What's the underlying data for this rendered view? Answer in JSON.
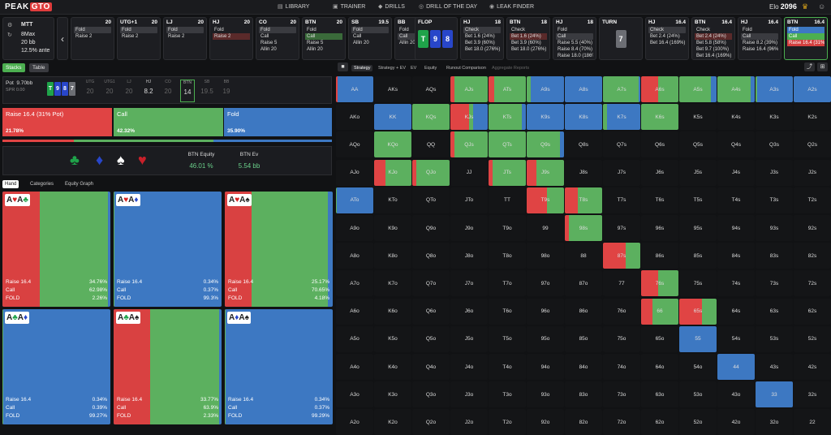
{
  "nav": {
    "logo_a": "PEAK",
    "logo_b": "GTO",
    "items": [
      "LIBRARY",
      "TRAINER",
      "DRILLS",
      "DRILL OF THE DAY",
      "LEAK FINDER"
    ],
    "elo_label": "Elo",
    "elo_value": "2096"
  },
  "info": {
    "format": "MTT",
    "players": "8Max",
    "stack": "20 bb",
    "ante": "12.5% ante"
  },
  "positions": [
    {
      "name": "",
      "stack": "20",
      "rows": [
        {
          "t": "Fold",
          "s": "sel"
        },
        {
          "t": "Raise 2",
          "s": ""
        }
      ]
    },
    {
      "name": "UTG+1",
      "stack": "20",
      "rows": [
        {
          "t": "Fold",
          "s": "sel"
        },
        {
          "t": "Raise 2",
          "s": ""
        }
      ]
    },
    {
      "name": "LJ",
      "stack": "20",
      "rows": [
        {
          "t": "Fold",
          "s": "sel"
        },
        {
          "t": "Raise 2",
          "s": ""
        }
      ]
    },
    {
      "name": "HJ",
      "stack": "20",
      "rows": [
        {
          "t": "Fold",
          "s": ""
        },
        {
          "t": "Raise 2",
          "s": "selr"
        }
      ]
    },
    {
      "name": "CO",
      "stack": "20",
      "rows": [
        {
          "t": "Fold",
          "s": "sel"
        },
        {
          "t": "Call",
          "s": ""
        },
        {
          "t": "Raise 5",
          "s": ""
        },
        {
          "t": "Allin 20",
          "s": ""
        }
      ]
    },
    {
      "name": "BTN",
      "stack": "20",
      "rows": [
        {
          "t": "Fold",
          "s": ""
        },
        {
          "t": "Call",
          "s": "selg"
        },
        {
          "t": "Raise 5",
          "s": ""
        },
        {
          "t": "Allin 20",
          "s": ""
        }
      ]
    },
    {
      "name": "SB",
      "stack": "19.5",
      "rows": [
        {
          "t": "Fold",
          "s": "sel"
        },
        {
          "t": "Call",
          "s": ""
        },
        {
          "t": "Allin 20",
          "s": ""
        }
      ]
    },
    {
      "name": "BB",
      "stack": "19",
      "rows": [
        {
          "t": "Fold",
          "s": ""
        },
        {
          "t": "Call",
          "s": "sel"
        },
        {
          "t": "Allin 20",
          "s": ""
        }
      ]
    }
  ],
  "flop": {
    "label": "FLOP",
    "cards": [
      {
        "r": "T",
        "c": "green"
      },
      {
        "r": "9",
        "c": "blue"
      },
      {
        "r": "8",
        "c": "blue"
      }
    ]
  },
  "streets": [
    {
      "name": "HJ",
      "stack": "18",
      "rows": [
        {
          "t": "Check",
          "s": "sel"
        },
        {
          "t": "Bet 1.6 (24%)",
          "s": ""
        },
        {
          "t": "Bet 3.9 (60%)",
          "s": ""
        },
        {
          "t": "Bet 18.0 (276%)",
          "s": ""
        }
      ]
    },
    {
      "name": "BTN",
      "stack": "18",
      "rows": [
        {
          "t": "Check",
          "s": ""
        },
        {
          "t": "Bet 1.6 (24%)",
          "s": "selr"
        },
        {
          "t": "Bet 3.9 (60%)",
          "s": ""
        },
        {
          "t": "Bet 18.0 (276%)",
          "s": ""
        }
      ]
    },
    {
      "name": "HJ",
      "stack": "18",
      "rows": [
        {
          "t": "Fold",
          "s": ""
        },
        {
          "t": "Call",
          "s": "sel"
        },
        {
          "t": "Raise 5.5 (40%)",
          "s": ""
        },
        {
          "t": "Raise 8.4 (70%)",
          "s": ""
        },
        {
          "t": "Raise 18.0 (186%)",
          "s": ""
        }
      ]
    }
  ],
  "turn": {
    "label": "TURN",
    "card": "7"
  },
  "streets2": [
    {
      "name": "HJ",
      "stack": "16.4",
      "rows": [
        {
          "t": "Check",
          "s": "sel"
        },
        {
          "t": "Bet 2.4 (24%)",
          "s": ""
        },
        {
          "t": "Bet 16.4 (169%)",
          "s": ""
        }
      ]
    },
    {
      "name": "BTN",
      "stack": "16.4",
      "rows": [
        {
          "t": "Check",
          "s": ""
        },
        {
          "t": "Bet 2.4 (24%)",
          "s": "selr"
        },
        {
          "t": "Bet 5.8 (58%)",
          "s": ""
        },
        {
          "t": "Bet 9.7 (100%)",
          "s": ""
        },
        {
          "t": "Bet 16.4 (169%)",
          "s": ""
        }
      ]
    },
    {
      "name": "HJ",
      "stack": "16.4",
      "rows": [
        {
          "t": "Fold",
          "s": ""
        },
        {
          "t": "Call",
          "s": "sel"
        },
        {
          "t": "Raise 8.2 (39%)",
          "s": ""
        },
        {
          "t": "Raise 16.4 (96%)",
          "s": ""
        }
      ]
    },
    {
      "name": "BTN",
      "stack": "16.4",
      "rows": [
        {
          "t": "Fold",
          "s": "selb"
        },
        {
          "t": "Call",
          "s": "selg2"
        },
        {
          "t": "Raise 16.4 (31%)",
          "s": "selr2"
        }
      ]
    }
  ],
  "left": {
    "tabs": [
      "Stacks",
      "Table"
    ],
    "pot_label": "Pot",
    "pot_value": "9.70bb",
    "spr": "SPR 0.00",
    "board": [
      "T",
      "9",
      "8",
      "7"
    ],
    "stacks": [
      {
        "pos": "UTG",
        "v": "20"
      },
      {
        "pos": "UTG1",
        "v": "20"
      },
      {
        "pos": "LJ",
        "v": "20"
      },
      {
        "pos": "HJ",
        "v": "8.2"
      },
      {
        "pos": "CO",
        "v": "20"
      },
      {
        "pos": "BTN",
        "v": "14"
      },
      {
        "pos": "SB",
        "v": "19.5"
      },
      {
        "pos": "BB",
        "v": "19"
      }
    ],
    "actions": [
      {
        "label": "Raise 16.4 (31% Pot)",
        "pct": "21.78%",
        "color": "#e04444"
      },
      {
        "label": "Call",
        "pct": "42.32%",
        "color": "#5cb05f"
      },
      {
        "label": "Fold",
        "pct": "35.90%",
        "color": "#3d78c2"
      }
    ],
    "equity_label": "BTN Equity",
    "equity_value": "46.01 %",
    "ev_label": "BTN Ev",
    "ev_value": "5.54 bb",
    "subtabs": [
      "Hand",
      "Categories",
      "Equity Graph"
    ],
    "combos": [
      {
        "cards": [
          [
            "A",
            "h"
          ],
          [
            "A",
            "c"
          ]
        ],
        "raise": 34.76,
        "call": 62.98,
        "fold": 2.26,
        "raise_s": "34.76%",
        "call_s": "62.98%",
        "fold_s": "2.26%"
      },
      {
        "cards": [
          [
            "A",
            "h"
          ],
          [
            "A",
            "d"
          ]
        ],
        "raise": 0.34,
        "call": 0.37,
        "fold": 99.3,
        "raise_s": "0.34%",
        "call_s": "0.37%",
        "fold_s": "99.3%"
      },
      {
        "cards": [
          [
            "A",
            "h"
          ],
          [
            "A",
            "s"
          ]
        ],
        "raise": 25.17,
        "call": 70.65,
        "fold": 4.18,
        "raise_s": "25.17%",
        "call_s": "70.65%",
        "fold_s": "4.18%"
      },
      {
        "cards": [
          [
            "A",
            "c"
          ],
          [
            "A",
            "d"
          ]
        ],
        "raise": 0.34,
        "call": 0.39,
        "fold": 99.27,
        "raise_s": "0.34%",
        "call_s": "0.39%",
        "fold_s": "99.27%"
      },
      {
        "cards": [
          [
            "A",
            "c"
          ],
          [
            "A",
            "s"
          ]
        ],
        "raise": 33.77,
        "call": 63.9,
        "fold": 2.33,
        "raise_s": "33.77%",
        "call_s": "63.9%",
        "fold_s": "2.33%"
      },
      {
        "cards": [
          [
            "A",
            "d"
          ],
          [
            "A",
            "s"
          ]
        ],
        "raise": 0.34,
        "call": 0.37,
        "fold": 99.29,
        "raise_s": "0.34%",
        "call_s": "0.37%",
        "fold_s": "99.29%"
      }
    ],
    "row_labels": [
      "Raise 16.4",
      "Call",
      "FOLD"
    ]
  },
  "right": {
    "tabs": [
      "Strategy",
      "Strategy + EV",
      "EV",
      "Equity",
      "Runout Comparison",
      "Aggregate Reports"
    ],
    "ranks": [
      "A",
      "K",
      "Q",
      "J",
      "T",
      "9",
      "8",
      "7",
      "6",
      "5",
      "4",
      "3",
      "2"
    ],
    "colors": {
      "raise": "#e04444",
      "call": "#5cb05f",
      "fold": "#3d78c2",
      "empty": "#141517"
    },
    "cells": {
      "AA": [
        0.05,
        0,
        0.95
      ],
      "AKs": null,
      "AQs": null,
      "AJs": [
        0.1,
        0.9,
        0
      ],
      "ATs": [
        0.15,
        0.85,
        0
      ],
      "A9s": [
        0,
        0.1,
        0.9
      ],
      "A8s": [
        0,
        0,
        1
      ],
      "A7s": [
        0,
        0.95,
        0.05
      ],
      "A6s": [
        0.45,
        0.55,
        0
      ],
      "A5s": [
        0,
        0.85,
        0.15
      ],
      "A4s": [
        0,
        0.9,
        0.1
      ],
      "A3s": [
        0,
        0.05,
        0.95
      ],
      "A2s": [
        0,
        0,
        1
      ],
      "AKo": null,
      "KK": [
        0,
        0,
        1
      ],
      "KQs": [
        0,
        1,
        0
      ],
      "KJs": [
        0.5,
        0.1,
        0.4
      ],
      "KTs": [
        0,
        0.9,
        0.1
      ],
      "K9s": [
        0,
        0,
        1
      ],
      "K8s": [
        0,
        0,
        1
      ],
      "K7s": [
        0,
        0.1,
        0.9
      ],
      "K6s": [
        0,
        1,
        0
      ],
      "AQo": null,
      "KQo": [
        0,
        1,
        0
      ],
      "QQ": null,
      "QJs": [
        0.1,
        0.9,
        0
      ],
      "QTs": [
        0,
        1,
        0
      ],
      "Q9s": [
        0,
        0.9,
        0.1
      ],
      "AJo": null,
      "KJo": [
        0.3,
        0.7,
        0
      ],
      "QJo": [
        0.1,
        0.9,
        0
      ],
      "JJ": null,
      "JTs": [
        0.1,
        0.9,
        0
      ],
      "J9s": [
        0.25,
        0.75,
        0
      ],
      "ATo": [
        0,
        0.03,
        0.97
      ],
      "T9s": [
        0.55,
        0.45,
        0
      ],
      "T8s": [
        0.35,
        0.65,
        0
      ],
      "98s": [
        0.1,
        0.9,
        0
      ],
      "87s": [
        0.6,
        0.4,
        0
      ],
      "76s": [
        0.45,
        0.55,
        0
      ],
      "66": [
        0.3,
        0.7,
        0
      ],
      "65s": [
        0.6,
        0.4,
        0
      ],
      "55": [
        0,
        0,
        1
      ],
      "44": [
        0,
        0,
        1
      ],
      "33": [
        0,
        0,
        1
      ]
    }
  }
}
